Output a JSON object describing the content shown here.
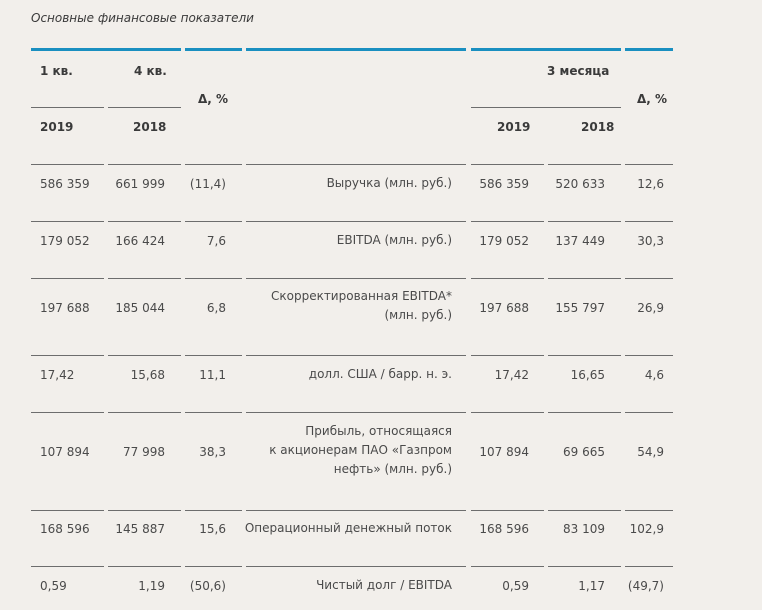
{
  "title": "Основные финансовые показатели",
  "header": {
    "q1": "1 кв.",
    "q4": "4 кв.",
    "delta_left": "Δ, %",
    "months3": "3 месяца",
    "delta_right": "Δ, %",
    "y2019_left": "2019",
    "y2018_left": "2018",
    "y2019_right": "2019",
    "y2018_right": "2018"
  },
  "rows": [
    {
      "a": "586 359",
      "b": "661 999",
      "c": "(11,4)",
      "label": "Выручка (млн. руб.)",
      "d": "586 359",
      "e": "520 633",
      "f": "12,6"
    },
    {
      "a": "179 052",
      "b": "166 424",
      "c": "7,6",
      "label": "EBITDA (млн. руб.)",
      "d": "179 052",
      "e": "137 449",
      "f": "30,3"
    },
    {
      "a": "197 688",
      "b": "185 044",
      "c": "6,8",
      "label": "Скорректированная EBITDA* (млн. руб.)",
      "d": "197 688",
      "e": "155 797",
      "f": "26,9"
    },
    {
      "a": "17,42",
      "b": "15,68",
      "c": "11,1",
      "label": "долл. США / барр. н. э.",
      "d": "17,42",
      "e": "16,65",
      "f": "4,6"
    },
    {
      "a": "107 894",
      "b": "77 998",
      "c": "38,3",
      "label": "Прибыль, относящаяся к акционерам ПАО «Газпром нефть» (млн. руб.)",
      "d": "107 894",
      "e": "69 665",
      "f": "54,9"
    },
    {
      "a": "168 596",
      "b": "145 887",
      "c": "15,6",
      "label": "Операционный денежный поток",
      "d": "168 596",
      "e": "83 109",
      "f": "102,9"
    },
    {
      "a": "0,59",
      "b": "1,19",
      "c": "(50,6)",
      "label": "Чистый долг / EBITDA",
      "d": "0,59",
      "e": "1,17",
      "f": "(49,7)"
    }
  ]
}
